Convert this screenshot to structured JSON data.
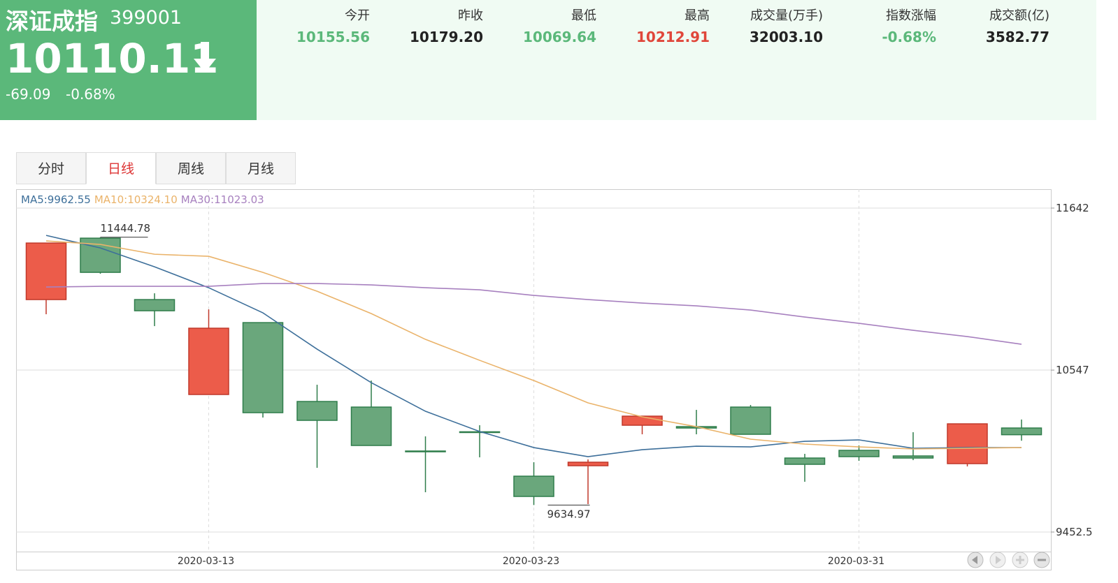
{
  "header": {
    "name": "深证成指",
    "code": "399001",
    "price": "10110.11",
    "change": "-69.09",
    "change_pct": "-0.68%"
  },
  "stats": [
    {
      "label": "今开",
      "value": "10155.56",
      "color": "#5bb87a"
    },
    {
      "label": "昨收",
      "value": "10179.20",
      "color": "#222222"
    },
    {
      "label": "最低",
      "value": "10069.64",
      "color": "#5bb87a"
    },
    {
      "label": "最高",
      "value": "10212.91",
      "color": "#e0463a"
    },
    {
      "label": "成交量(万手)",
      "value": "32003.10",
      "color": "#222222"
    },
    {
      "label": "指数涨幅",
      "value": "-0.68%",
      "color": "#5bb87a"
    },
    {
      "label": "成交额(亿)",
      "value": "3582.77",
      "color": "#222222"
    }
  ],
  "tabs": [
    "分时",
    "日线",
    "周线",
    "月线"
  ],
  "active_tab": 1,
  "chart_data": {
    "type": "candlestick",
    "categories": [
      null,
      null,
      null,
      "2020-03-13",
      null,
      null,
      null,
      null,
      null,
      "2020-03-23",
      null,
      null,
      null,
      null,
      null,
      "2020-03-31",
      null,
      null,
      null
    ],
    "open": [
      11023.5,
      11438.6,
      11023.5,
      10382,
      10867.8,
      10334.7,
      10297,
      10000,
      10130,
      9829.9,
      9900.7,
      10174.3,
      10164.9,
      10297,
      9952.6,
      10004.5,
      9966.7,
      9914.8,
      10155.56
    ],
    "close": [
      11405.6,
      11207.5,
      10948,
      10830,
      10259.2,
      10207.3,
      10037.5,
      9995,
      10125,
      9693.1,
      9924.3,
      10235.6,
      10155.4,
      10113,
      9910.1,
      9962,
      9952.6,
      10183.7,
      10110.11
    ],
    "high": [
      11405.6,
      11444.78,
      11066,
      10957.4,
      10867.8,
      10447.9,
      10476.2,
      10099,
      10174.3,
      9924.3,
      9943.1,
      10235.6,
      10278.1,
      10311.1,
      9980.9,
      10037.5,
      10127.1,
      10183.7,
      10212.91
    ],
    "low": [
      10924.4,
      11198,
      10844.2,
      10382,
      10226.2,
      9886.5,
      10037.5,
      9721.4,
      9957.3,
      9634.97,
      9641.2,
      10113,
      10113,
      10113,
      9792.2,
      9933.7,
      9938.4,
      9895.9,
      10069.64
    ],
    "up_color": "#ec5c4a",
    "up_border": "#c0392b",
    "down_color": "#6aa77c",
    "down_border": "#2f7d4b",
    "series": [
      {
        "name": "MA5:9962.55",
        "color": "#3d6f9a",
        "values": [
          11457.5,
          11372.6,
          11245,
          11103.7,
          10933.9,
          10688.5,
          10462,
          10268.7,
          10131.8,
          10023.3,
          9962,
          10009.2,
          10032.8,
          10028.1,
          10065.8,
          10075.3,
          10018.6,
          10023.3,
          10023.3
        ]
      },
      {
        "name": "MA10:10324.10",
        "color": "#eab36a",
        "values": [
          11419.8,
          11396.2,
          11330,
          11316,
          11207.5,
          11080,
          10929,
          10754.6,
          10613,
          10476.2,
          10325.3,
          10231,
          10164.9,
          10080,
          10047,
          10028,
          10014,
          10018.6,
          10023.3
        ]
      },
      {
        "name": "MA30:11023.03",
        "color": "#a780bf",
        "values": [
          11108.4,
          11113.1,
          11113.1,
          11113.1,
          11132,
          11132,
          11122.6,
          11103.7,
          11089.5,
          11051.8,
          11023.5,
          11000,
          10981,
          10952.7,
          10905.5,
          10863,
          10816,
          10773.5,
          10721.6
        ]
      }
    ],
    "ylim": [
      9452.5,
      11642
    ],
    "yticks": [
      11642,
      10547,
      9452.5
    ],
    "grid": true,
    "high_label": "11444.78",
    "low_label": "9634.97"
  }
}
